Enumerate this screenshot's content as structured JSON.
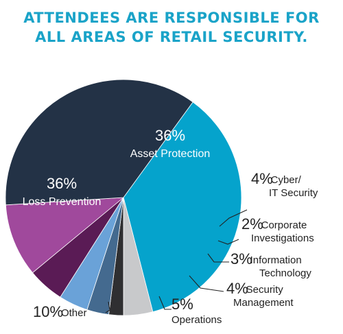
{
  "title": {
    "line1": "ATTENDEES ARE RESPONSIBLE FOR",
    "line2": "ALL AREAS OF RETAIL SECURITY."
  },
  "colors": {
    "title": "#1aa3c8",
    "leader_line": "#222222",
    "outside_text": "#222222",
    "inside_text": "#ffffff"
  },
  "chart_data": {
    "type": "pie",
    "title": "ATTENDEES ARE RESPONSIBLE FOR ALL AREAS OF RETAIL SECURITY.",
    "slices": [
      {
        "key": "asset-protection",
        "percent": "36%",
        "value": 36,
        "label": [
          "Asset Protection"
        ],
        "color": "#05a3cc",
        "label_position": "inside"
      },
      {
        "key": "cyber-it-security",
        "percent": "4%",
        "value": 4,
        "label": [
          "Cyber/",
          "IT Security"
        ],
        "color": "#c8c9cb",
        "label_position": "outside-right"
      },
      {
        "key": "corporate-investigations",
        "percent": "2%",
        "value": 2,
        "label": [
          "Corporate",
          "Investigations"
        ],
        "color": "#2f2f31",
        "label_position": "outside-right"
      },
      {
        "key": "information-technology",
        "percent": "3%",
        "value": 3,
        "label": [
          "Information",
          "Technology"
        ],
        "color": "#446a8f",
        "label_position": "outside-right"
      },
      {
        "key": "security-management",
        "percent": "4%",
        "value": 4,
        "label": [
          "Security",
          "Management"
        ],
        "color": "#6aa2d8",
        "label_position": "outside-right"
      },
      {
        "key": "operations",
        "percent": "5%",
        "value": 5,
        "label": [
          "Operations"
        ],
        "color": "#5a1b55",
        "label_position": "outside-bottom"
      },
      {
        "key": "other",
        "percent": "10%",
        "value": 10,
        "label": [
          "Other"
        ],
        "color": "#a0499c",
        "label_position": "outside-left"
      },
      {
        "key": "loss-prevention",
        "percent": "36%",
        "value": 36,
        "label": [
          "Loss Prevention"
        ],
        "color": "#233246",
        "label_position": "inside"
      }
    ]
  }
}
